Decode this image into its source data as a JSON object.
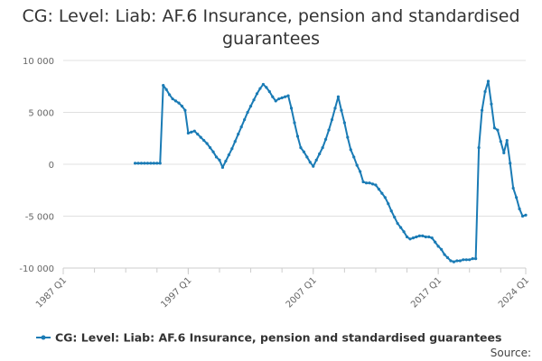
{
  "chart_data": {
    "type": "line",
    "title": "CG: Level: Liab: AF.6 Insurance, pension and standardised guarantees",
    "source": "Source:",
    "xlim": [
      "1987 Q1",
      "2024 Q1"
    ],
    "xticks": [
      "1987 Q1",
      "1997 Q1",
      "2007 Q1",
      "2017 Q1",
      "2024 Q1"
    ],
    "ylim": [
      -10000,
      10000
    ],
    "yticks": [
      {
        "value": 10000,
        "label": "10 000"
      },
      {
        "value": 5000,
        "label": "5 000"
      },
      0,
      {
        "value": -5000,
        "label": "-5 000"
      },
      {
        "value": -10000,
        "label": "-10 000"
      }
    ],
    "grid": true,
    "series": [
      {
        "name": "CG: Level: Liab: AF.6 Insurance, pension and standardised guarantees",
        "color": "#1a7bb5",
        "x": [
          "1992 Q4",
          "1993 Q1",
          "1993 Q2",
          "1993 Q3",
          "1993 Q4",
          "1994 Q1",
          "1994 Q2",
          "1994 Q3",
          "1994 Q4",
          "1995 Q1",
          "1995 Q2",
          "1995 Q3",
          "1995 Q4",
          "1996 Q1",
          "1996 Q2",
          "1996 Q3",
          "1996 Q4",
          "1997 Q1",
          "1997 Q2",
          "1997 Q3",
          "1997 Q4",
          "1998 Q1",
          "1998 Q2",
          "1998 Q3",
          "1998 Q4",
          "1999 Q1",
          "1999 Q2",
          "1999 Q3",
          "1999 Q4",
          "2000 Q1",
          "2000 Q2",
          "2000 Q3",
          "2000 Q4",
          "2001 Q1",
          "2001 Q2",
          "2001 Q3",
          "2001 Q4",
          "2002 Q1",
          "2002 Q2",
          "2002 Q3",
          "2002 Q4",
          "2003 Q1",
          "2003 Q2",
          "2003 Q3",
          "2003 Q4",
          "2004 Q1",
          "2004 Q2",
          "2004 Q3",
          "2004 Q4",
          "2005 Q1",
          "2005 Q2",
          "2005 Q3",
          "2005 Q4",
          "2006 Q1",
          "2006 Q2",
          "2006 Q3",
          "2006 Q4",
          "2007 Q1",
          "2007 Q2",
          "2007 Q3",
          "2007 Q4",
          "2008 Q1",
          "2008 Q2",
          "2008 Q3",
          "2008 Q4",
          "2009 Q1",
          "2009 Q2",
          "2009 Q3",
          "2009 Q4",
          "2010 Q1",
          "2010 Q2",
          "2010 Q3",
          "2010 Q4",
          "2011 Q1",
          "2011 Q2",
          "2011 Q3",
          "2011 Q4",
          "2012 Q1",
          "2012 Q2",
          "2012 Q3",
          "2012 Q4",
          "2013 Q1",
          "2013 Q2",
          "2013 Q3",
          "2013 Q4",
          "2014 Q1",
          "2014 Q2",
          "2014 Q3",
          "2014 Q4",
          "2015 Q1",
          "2015 Q2",
          "2015 Q3",
          "2015 Q4",
          "2016 Q1",
          "2016 Q2",
          "2016 Q3",
          "2016 Q4",
          "2017 Q1",
          "2017 Q2",
          "2017 Q3",
          "2017 Q4",
          "2018 Q1",
          "2018 Q2",
          "2018 Q3",
          "2018 Q4",
          "2019 Q1",
          "2019 Q2",
          "2019 Q3",
          "2019 Q4",
          "2020 Q1",
          "2020 Q2",
          "2020 Q3",
          "2020 Q4",
          "2021 Q1",
          "2021 Q2",
          "2021 Q3",
          "2021 Q4",
          "2022 Q1",
          "2022 Q2",
          "2022 Q3",
          "2022 Q4",
          "2023 Q1",
          "2023 Q2",
          "2023 Q3",
          "2023 Q4",
          "2024 Q1"
        ],
        "values": [
          100,
          100,
          100,
          100,
          100,
          100,
          100,
          100,
          100,
          7600,
          7200,
          6700,
          6300,
          6100,
          5900,
          5600,
          5200,
          3000,
          3100,
          3200,
          2900,
          2600,
          2300,
          2000,
          1600,
          1200,
          700,
          400,
          -300,
          300,
          900,
          1500,
          2200,
          2900,
          3600,
          4300,
          5000,
          5600,
          6200,
          6800,
          7300,
          7700,
          7400,
          7000,
          6500,
          6100,
          6300,
          6400,
          6500,
          6600,
          5400,
          4000,
          2700,
          1600,
          1200,
          700,
          200,
          -200,
          400,
          1000,
          1600,
          2400,
          3300,
          4300,
          5400,
          6500,
          5200,
          4000,
          2600,
          1400,
          700,
          -100,
          -700,
          -1700,
          -1800,
          -1800,
          -1900,
          -2000,
          -2400,
          -2800,
          -3200,
          -3800,
          -4500,
          -5100,
          -5700,
          -6100,
          -6500,
          -7000,
          -7200,
          -7100,
          -7000,
          -6900,
          -6900,
          -7000,
          -7000,
          -7100,
          -7500,
          -7900,
          -8200,
          -8700,
          -9000,
          -9300,
          -9400,
          -9300,
          -9300,
          -9200,
          -9200,
          -9200,
          -9100,
          -9100,
          1600,
          5200,
          7000,
          8000,
          5800,
          3500,
          3300,
          2200,
          1100,
          2300,
          100,
          -2300,
          -3200,
          -4300,
          -5000,
          -4900
        ]
      }
    ]
  }
}
